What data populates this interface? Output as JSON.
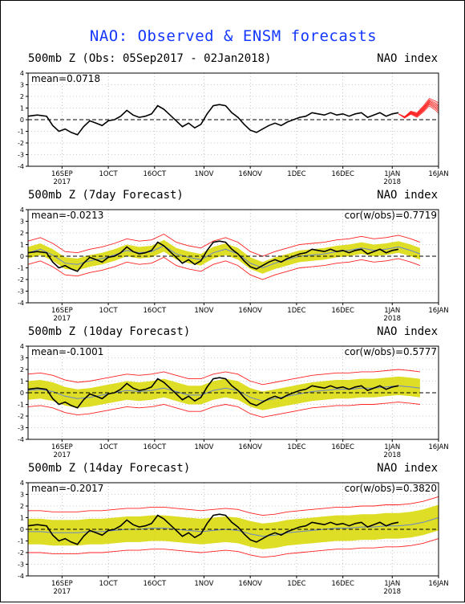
{
  "title": "NAO: Observed & ENSM forecasts",
  "x_axis": {
    "ticks": [
      "16SEP",
      "1OCT",
      "16OCT",
      "1NOV",
      "16NOV",
      "1DEC",
      "16DEC",
      "1JAN",
      "16JAN"
    ],
    "tick_days": [
      11,
      26,
      41,
      57,
      72,
      87,
      102,
      118,
      133
    ],
    "year_labels": [
      {
        "text": "2017",
        "day": 11
      },
      {
        "text": "2018",
        "day": 118
      }
    ]
  },
  "y_axis": {
    "ticks": [
      "4",
      "3",
      "2",
      "1",
      "0",
      "-1",
      "-2",
      "-3",
      "-4"
    ]
  },
  "colors": {
    "observed": "#000000",
    "mean": "#6a84c8",
    "spread": "#d8d800",
    "bounds": "#ff2020",
    "zero": "#000000",
    "title": "#1438ff"
  },
  "panels": [
    {
      "title": "500mb Z (Obs: 05Sep2017 - 02Jan2018)",
      "index_label": "NAO index",
      "mean_label": "mean=0.0718",
      "cor_label": ""
    },
    {
      "title": "500mb Z (7day Forecast)",
      "index_label": "NAO index",
      "mean_label": "mean=-0.0213",
      "cor_label": "cor(w/obs)=0.7719"
    },
    {
      "title": "500mb Z (10day Forecast)",
      "index_label": "NAO index",
      "mean_label": "mean=-0.1001",
      "cor_label": "cor(w/obs)=0.5777"
    },
    {
      "title": "500mb Z (14day Forecast)",
      "index_label": "NAO index",
      "mean_label": "mean=-0.2017",
      "cor_label": "cor(w/obs)=0.3820"
    }
  ],
  "chart_data": [
    {
      "type": "line",
      "title": "500mb Z (Obs: 05Sep2017 - 02Jan2018)",
      "ylim": [
        -4,
        4
      ],
      "xlim_days": [
        0,
        133
      ],
      "grid": true,
      "series": [
        {
          "name": "",
          "role": "observed",
          "x": [
            0,
            3,
            6,
            8,
            10,
            12,
            14,
            16,
            18,
            20,
            22,
            24,
            26,
            28,
            30,
            32,
            34,
            36,
            38,
            40,
            42,
            44,
            46,
            48,
            50,
            52,
            54,
            56,
            58,
            60,
            62,
            64,
            66,
            68,
            70,
            72,
            74,
            76,
            78,
            80,
            82,
            84,
            86,
            88,
            90,
            92,
            94,
            96,
            98,
            100,
            102,
            104,
            106,
            108,
            110,
            112,
            114,
            116,
            118,
            120
          ],
          "y": [
            0.3,
            0.4,
            0.3,
            -0.5,
            -1.0,
            -0.8,
            -1.1,
            -1.3,
            -0.6,
            -0.1,
            -0.3,
            -0.5,
            -0.1,
            0.0,
            0.3,
            0.8,
            0.4,
            0.2,
            0.3,
            0.5,
            1.2,
            0.9,
            0.4,
            -0.1,
            -0.6,
            -0.3,
            -0.7,
            -0.4,
            0.5,
            1.2,
            1.3,
            1.2,
            0.6,
            0.2,
            -0.4,
            -0.9,
            -1.1,
            -0.8,
            -0.5,
            -0.3,
            -0.5,
            -0.2,
            0.0,
            0.2,
            0.3,
            0.6,
            0.5,
            0.4,
            0.6,
            0.4,
            0.5,
            0.3,
            0.5,
            0.6,
            0.2,
            0.4,
            0.6,
            0.3,
            0.5,
            0.6
          ]
        },
        {
          "name": "",
          "role": "members",
          "x": [
            120,
            122,
            124,
            126,
            128,
            130,
            132,
            133
          ],
          "y": [
            0.5,
            0.2,
            0.6,
            0.4,
            0.9,
            1.5,
            1.2,
            1.0
          ],
          "spread": 0.9
        }
      ]
    },
    {
      "type": "line",
      "title": "500mb Z (7day Forecast)",
      "ylim": [
        -4,
        4
      ],
      "xlim_days": [
        0,
        133
      ],
      "grid": true,
      "series": [
        {
          "name": "",
          "role": "observed",
          "x": [
            0,
            3,
            6,
            8,
            10,
            12,
            14,
            16,
            18,
            20,
            22,
            24,
            26,
            28,
            30,
            32,
            34,
            36,
            38,
            40,
            42,
            44,
            46,
            48,
            50,
            52,
            54,
            56,
            58,
            60,
            62,
            64,
            66,
            68,
            70,
            72,
            74,
            76,
            78,
            80,
            82,
            84,
            86,
            88,
            90,
            92,
            94,
            96,
            98,
            100,
            102,
            104,
            106,
            108,
            110,
            112,
            114,
            116,
            118,
            120
          ],
          "y": [
            0.3,
            0.4,
            0.3,
            -0.5,
            -1.0,
            -0.8,
            -1.1,
            -1.3,
            -0.6,
            -0.1,
            -0.3,
            -0.5,
            -0.1,
            0.0,
            0.3,
            0.8,
            0.4,
            0.2,
            0.3,
            0.5,
            1.2,
            0.9,
            0.4,
            -0.1,
            -0.6,
            -0.3,
            -0.7,
            -0.4,
            0.5,
            1.2,
            1.3,
            1.2,
            0.6,
            0.2,
            -0.4,
            -0.9,
            -1.1,
            -0.8,
            -0.5,
            -0.3,
            -0.5,
            -0.2,
            0.0,
            0.2,
            0.3,
            0.6,
            0.5,
            0.4,
            0.6,
            0.4,
            0.5,
            0.3,
            0.5,
            0.6,
            0.2,
            0.4,
            0.6,
            0.3,
            0.5,
            0.6
          ]
        },
        {
          "name": "",
          "role": "ensemble_mean",
          "x": [
            0,
            4,
            8,
            12,
            16,
            20,
            24,
            28,
            32,
            36,
            40,
            44,
            48,
            52,
            56,
            60,
            64,
            68,
            72,
            76,
            80,
            84,
            88,
            92,
            96,
            100,
            104,
            108,
            112,
            116,
            120,
            124,
            127
          ],
          "y": [
            0.3,
            0.6,
            0.1,
            -0.6,
            -0.7,
            -0.4,
            -0.2,
            0.1,
            0.5,
            0.3,
            0.4,
            0.9,
            0.2,
            -0.1,
            -0.3,
            0.3,
            0.6,
            0.2,
            -0.6,
            -1.0,
            -0.6,
            -0.3,
            0.0,
            0.1,
            0.2,
            0.4,
            0.5,
            0.7,
            0.5,
            0.6,
            0.8,
            0.5,
            0.2
          ],
          "spread": 0.5,
          "bound": 1.0
        }
      ]
    },
    {
      "type": "line",
      "title": "500mb Z (10day Forecast)",
      "ylim": [
        -4,
        4
      ],
      "xlim_days": [
        0,
        133
      ],
      "grid": true,
      "series": [
        {
          "name": "",
          "role": "observed",
          "x": [
            0,
            3,
            6,
            8,
            10,
            12,
            14,
            16,
            18,
            20,
            22,
            24,
            26,
            28,
            30,
            32,
            34,
            36,
            38,
            40,
            42,
            44,
            46,
            48,
            50,
            52,
            54,
            56,
            58,
            60,
            62,
            64,
            66,
            68,
            70,
            72,
            74,
            76,
            78,
            80,
            82,
            84,
            86,
            88,
            90,
            92,
            94,
            96,
            98,
            100,
            102,
            104,
            106,
            108,
            110,
            112,
            114,
            116,
            118,
            120
          ],
          "y": [
            0.3,
            0.4,
            0.3,
            -0.5,
            -1.0,
            -0.8,
            -1.1,
            -1.3,
            -0.6,
            -0.1,
            -0.3,
            -0.5,
            -0.1,
            0.0,
            0.3,
            0.8,
            0.4,
            0.2,
            0.3,
            0.5,
            1.2,
            0.9,
            0.4,
            -0.1,
            -0.6,
            -0.3,
            -0.7,
            -0.4,
            0.5,
            1.2,
            1.3,
            1.2,
            0.6,
            0.2,
            -0.4,
            -0.9,
            -1.1,
            -0.8,
            -0.5,
            -0.3,
            -0.5,
            -0.2,
            0.0,
            0.2,
            0.3,
            0.6,
            0.5,
            0.4,
            0.6,
            0.4,
            0.5,
            0.3,
            0.5,
            0.6,
            0.2,
            0.4,
            0.6,
            0.3,
            0.5,
            0.6
          ]
        },
        {
          "name": "",
          "role": "ensemble_mean",
          "x": [
            0,
            4,
            8,
            12,
            16,
            20,
            24,
            28,
            32,
            36,
            40,
            44,
            48,
            52,
            56,
            60,
            64,
            68,
            72,
            76,
            80,
            84,
            88,
            92,
            96,
            100,
            104,
            108,
            112,
            116,
            120,
            124,
            127
          ],
          "y": [
            0.2,
            0.3,
            0.1,
            -0.3,
            -0.5,
            -0.4,
            -0.2,
            0.0,
            0.2,
            0.1,
            0.2,
            0.4,
            0.1,
            -0.2,
            -0.2,
            0.2,
            0.4,
            0.2,
            -0.4,
            -0.7,
            -0.5,
            -0.3,
            -0.1,
            0.1,
            0.2,
            0.3,
            0.3,
            0.4,
            0.4,
            0.5,
            0.6,
            0.5,
            0.4
          ],
          "spread": 0.8,
          "bound": 1.4
        }
      ]
    },
    {
      "type": "line",
      "title": "500mb Z (14day Forecast)",
      "ylim": [
        -4,
        4
      ],
      "xlim_days": [
        0,
        133
      ],
      "grid": true,
      "series": [
        {
          "name": "",
          "role": "observed",
          "x": [
            0,
            3,
            6,
            8,
            10,
            12,
            14,
            16,
            18,
            20,
            22,
            24,
            26,
            28,
            30,
            32,
            34,
            36,
            38,
            40,
            42,
            44,
            46,
            48,
            50,
            52,
            54,
            56,
            58,
            60,
            62,
            64,
            66,
            68,
            70,
            72,
            74,
            76,
            78,
            80,
            82,
            84,
            86,
            88,
            90,
            92,
            94,
            96,
            98,
            100,
            102,
            104,
            106,
            108,
            110,
            112,
            114,
            116,
            118,
            120
          ],
          "y": [
            0.3,
            0.4,
            0.3,
            -0.5,
            -1.0,
            -0.8,
            -1.1,
            -1.3,
            -0.6,
            -0.1,
            -0.3,
            -0.5,
            -0.1,
            0.0,
            0.3,
            0.8,
            0.4,
            0.2,
            0.3,
            0.5,
            1.2,
            0.9,
            0.4,
            -0.1,
            -0.6,
            -0.3,
            -0.7,
            -0.4,
            0.5,
            1.2,
            1.3,
            1.2,
            0.6,
            0.2,
            -0.4,
            -0.9,
            -1.1,
            -0.8,
            -0.5,
            -0.3,
            -0.5,
            -0.2,
            0.0,
            0.2,
            0.3,
            0.6,
            0.5,
            0.4,
            0.6,
            0.4,
            0.5,
            0.3,
            0.5,
            0.6,
            0.2,
            0.4,
            0.6,
            0.3,
            0.5,
            0.6
          ]
        },
        {
          "name": "",
          "role": "ensemble_mean",
          "x": [
            0,
            4,
            8,
            12,
            16,
            20,
            24,
            28,
            32,
            36,
            40,
            44,
            48,
            52,
            56,
            60,
            64,
            68,
            72,
            76,
            80,
            84,
            88,
            92,
            96,
            100,
            104,
            108,
            112,
            116,
            120,
            124,
            128,
            133
          ],
          "y": [
            -0.2,
            -0.2,
            -0.3,
            -0.3,
            -0.3,
            -0.2,
            -0.2,
            -0.1,
            0.0,
            0.0,
            0.1,
            0.1,
            0.0,
            -0.1,
            -0.2,
            -0.1,
            0.0,
            -0.1,
            -0.4,
            -0.6,
            -0.5,
            -0.3,
            -0.2,
            -0.1,
            0.0,
            0.1,
            0.1,
            0.2,
            0.2,
            0.3,
            0.3,
            0.4,
            0.6,
            1.0
          ],
          "spread": 1.1,
          "bound": 1.8
        }
      ]
    }
  ]
}
